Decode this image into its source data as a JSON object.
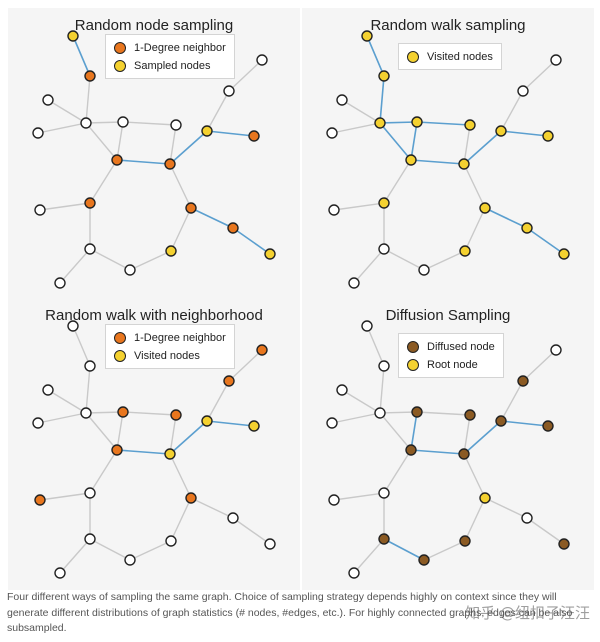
{
  "colors": {
    "gray_edge": "#c9c9c9",
    "blue_edge": "#5b9fcf",
    "white_node": "#ffffff",
    "orange_node": "#e8761e",
    "yellow_node": "#f4d130",
    "brown_node": "#8b5a23",
    "node_stroke": "#222222"
  },
  "panels": [
    {
      "title": "Random node sampling",
      "legend": [
        {
          "label": "1-Degree neighbor",
          "color": "orange"
        },
        {
          "label": "Sampled nodes",
          "color": "yellow"
        }
      ],
      "node_colors": {
        "A": "yellow",
        "B": "orange",
        "J": "orange",
        "K": "orange",
        "L": "yellow",
        "M": "orange",
        "N": "orange",
        "P": "orange",
        "Q": "orange",
        "R": "yellow",
        "S": "yellow"
      },
      "highlight_edges": [
        [
          "A",
          "B"
        ],
        [
          "J",
          "K"
        ],
        [
          "K",
          "L"
        ],
        [
          "L",
          "M"
        ],
        [
          "L",
          "N"
        ],
        [
          "N",
          "Q"
        ],
        [
          "Q",
          "R"
        ],
        [
          "R",
          "S"
        ],
        [
          "S",
          "P"
        ]
      ]
    },
    {
      "title": "Random walk sampling",
      "legend": [
        {
          "label": "Visited nodes",
          "color": "yellow"
        }
      ],
      "node_colors": {
        "A": "yellow",
        "B": "yellow",
        "C": "yellow",
        "H": "yellow",
        "I": "yellow",
        "J": "yellow",
        "K": "yellow",
        "L": "yellow",
        "M": "yellow",
        "N": "yellow",
        "P": "yellow",
        "Q": "yellow",
        "R": "yellow",
        "S": "yellow"
      },
      "highlight_edges": [
        [
          "A",
          "B"
        ],
        [
          "B",
          "C"
        ],
        [
          "C",
          "H"
        ],
        [
          "C",
          "J"
        ],
        [
          "H",
          "J"
        ],
        [
          "H",
          "I"
        ],
        [
          "J",
          "K"
        ],
        [
          "K",
          "L"
        ],
        [
          "L",
          "I"
        ],
        [
          "L",
          "M"
        ],
        [
          "L",
          "N"
        ],
        [
          "N",
          "Q"
        ],
        [
          "Q",
          "R"
        ],
        [
          "R",
          "S"
        ],
        [
          "S",
          "P"
        ]
      ]
    },
    {
      "title": "Random walk with neighborhood",
      "legend": [
        {
          "label": "1-Degree neighbor",
          "color": "orange"
        },
        {
          "label": "Visited nodes",
          "color": "yellow"
        }
      ],
      "node_colors": {
        "H": "orange",
        "J": "orange",
        "K": "yellow",
        "I": "orange",
        "L": "yellow",
        "M": "yellow",
        "F": "orange",
        "G": "orange",
        "N": "orange",
        "O": "orange"
      },
      "highlight_edges": [
        [
          "H",
          "K"
        ],
        [
          "J",
          "K"
        ],
        [
          "K",
          "L"
        ],
        [
          "L",
          "I"
        ],
        [
          "L",
          "M"
        ],
        [
          "M",
          "F"
        ],
        [
          "M",
          "G"
        ],
        [
          "K",
          "O"
        ],
        [
          "L",
          "N"
        ]
      ]
    },
    {
      "title": "Diffusion Sampling",
      "legend": [
        {
          "label": "Diffused node",
          "color": "brown"
        },
        {
          "label": "Root node",
          "color": "yellow"
        }
      ],
      "node_colors": {
        "H": "brown",
        "J": "brown",
        "K": "brown",
        "I": "brown",
        "L": "brown",
        "M": "brown",
        "G": "brown",
        "N": "yellow",
        "T": "brown",
        "U": "brown",
        "R": "brown",
        "S": "brown"
      },
      "highlight_edges": [
        [
          "H",
          "J"
        ],
        [
          "J",
          "K"
        ],
        [
          "H",
          "K"
        ],
        [
          "K",
          "L"
        ],
        [
          "I",
          "L"
        ],
        [
          "L",
          "M"
        ],
        [
          "M",
          "G"
        ],
        [
          "L",
          "N"
        ],
        [
          "N",
          "T"
        ],
        [
          "T",
          "U"
        ],
        [
          "N",
          "R"
        ],
        [
          "R",
          "S"
        ]
      ]
    }
  ],
  "caption": "Four different ways of sampling the same graph. Choice of sampling strategy depends highly on context since they will generate different distributions of graph statistics (# nodes, #edges, etc.). For highly connected graphs, edges can be also subsampled.",
  "watermark": "知乎 @纽扣子汪汪"
}
